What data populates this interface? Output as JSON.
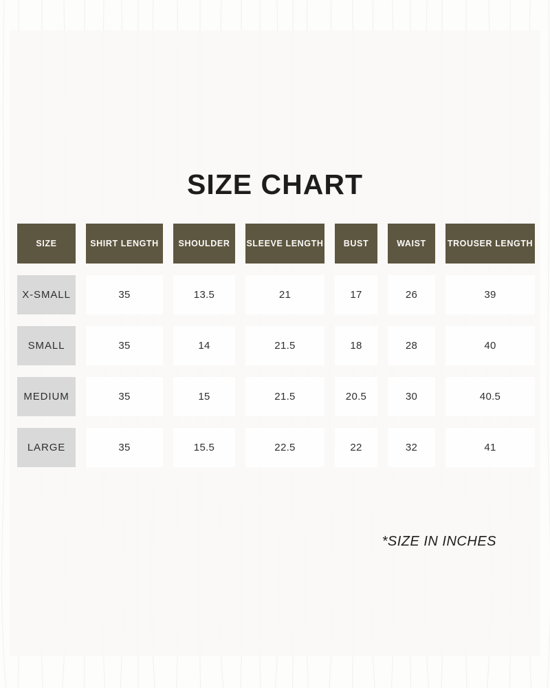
{
  "page": {
    "title": "SIZE CHART",
    "footnote": "*SIZE IN INCHES"
  },
  "colors": {
    "header_bg": "#5D5640",
    "header_text": "#FBFAF8",
    "row_label_bg": "#D9D9D9",
    "value_cell_bg": "#FEFEFE",
    "paper_bg": "#F9F8F6",
    "texture_line": "#DEDEDE",
    "text_dark": "#1D1D1D"
  },
  "chart_data": {
    "type": "table",
    "title": "SIZE CHART",
    "unit_note": "*SIZE IN INCHES",
    "columns": [
      "SIZE",
      "SHIRT LENGTH",
      "SHOULDER",
      "SLEEVE LENGTH",
      "BUST",
      "WAIST",
      "TROUSER LENGTH"
    ],
    "rows": [
      {
        "label": "X-SMALL",
        "values": [
          "35",
          "13.5",
          "21",
          "17",
          "26",
          "39"
        ]
      },
      {
        "label": "SMALL",
        "values": [
          "35",
          "14",
          "21.5",
          "18",
          "28",
          "40"
        ]
      },
      {
        "label": "MEDIUM",
        "values": [
          "35",
          "15",
          "21.5",
          "20.5",
          "30",
          "40.5"
        ]
      },
      {
        "label": "LARGE",
        "values": [
          "35",
          "15.5",
          "22.5",
          "22",
          "32",
          "41"
        ]
      }
    ]
  }
}
